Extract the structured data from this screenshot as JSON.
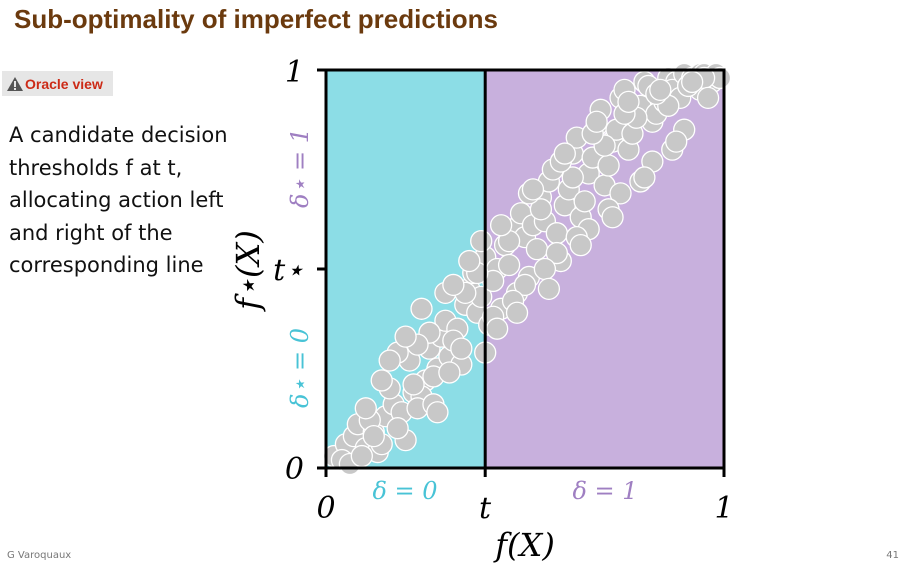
{
  "slide": {
    "title": "Sub-optimality of imperfect predictions",
    "badge": "Oracle view",
    "body": "A candidate decision thresholds f at t, allocating action left and right of the corresponding line",
    "footer_author": "G Varoquaux",
    "page_number": "41"
  },
  "colors": {
    "title": "#6b3a0e",
    "badge_text": "#cc2a16",
    "left_region": "#8cdde6",
    "right_region": "#c8b0dd",
    "cyan_text": "#48c3d6",
    "purple_text": "#9f7fc2",
    "points": "#c8c8c8"
  },
  "icons": {
    "badge_icon": "warning-triangle-icon"
  },
  "chart_data": {
    "type": "scatter",
    "xlabel": "f(X)",
    "ylabel": "f⋆(X)",
    "xlim": [
      0,
      1
    ],
    "ylim": [
      0,
      1
    ],
    "x_ticks": [
      "0",
      "t",
      "1"
    ],
    "y_ticks": [
      "0",
      "t⋆",
      "1"
    ],
    "threshold_x": 0.4,
    "threshold_y": 0.5,
    "region_labels": {
      "left": "δ = 0",
      "right": "δ = 1"
    },
    "side_labels": {
      "lower": "δ⋆ = 0",
      "upper": "δ⋆ = 1"
    },
    "series": [
      {
        "x": [
          0.02,
          0.05,
          0.04,
          0.07,
          0.1,
          0.08,
          0.12,
          0.15,
          0.13,
          0.17,
          0.2,
          0.22,
          0.19,
          0.25,
          0.28,
          0.24,
          0.06,
          0.09,
          0.11,
          0.14,
          0.16,
          0.18,
          0.21,
          0.23,
          0.26,
          0.29,
          0.27,
          0.3,
          0.33,
          0.31,
          0.35,
          0.32,
          0.36,
          0.38,
          0.34,
          0.37,
          0.39,
          0.4,
          0.41,
          0.43,
          0.42,
          0.45,
          0.44,
          0.47,
          0.46,
          0.49,
          0.48,
          0.5,
          0.52,
          0.51,
          0.54,
          0.53,
          0.56,
          0.55,
          0.58,
          0.57,
          0.6,
          0.59,
          0.62,
          0.61,
          0.64,
          0.63,
          0.66,
          0.65,
          0.68,
          0.67,
          0.7,
          0.69,
          0.72,
          0.71,
          0.74,
          0.73,
          0.76,
          0.75,
          0.78,
          0.77,
          0.8,
          0.79,
          0.82,
          0.81,
          0.84,
          0.83,
          0.86,
          0.85,
          0.88,
          0.87,
          0.9,
          0.89,
          0.92,
          0.91,
          0.94,
          0.93,
          0.96,
          0.95,
          0.97,
          0.98,
          0.99,
          0.1,
          0.14,
          0.18,
          0.22,
          0.26,
          0.3,
          0.34,
          0.38,
          0.42,
          0.46,
          0.5,
          0.54,
          0.58,
          0.62,
          0.66,
          0.7,
          0.74,
          0.78,
          0.82,
          0.86,
          0.9,
          0.94,
          0.23,
          0.27,
          0.31,
          0.35,
          0.39,
          0.43,
          0.47,
          0.51,
          0.55,
          0.59,
          0.63,
          0.67,
          0.71,
          0.75,
          0.79,
          0.83,
          0.87,
          0.91,
          0.95,
          0.12,
          0.16,
          0.2,
          0.24,
          0.28,
          0.32,
          0.36,
          0.4,
          0.44,
          0.48,
          0.52,
          0.56,
          0.6,
          0.64,
          0.68,
          0.72,
          0.76,
          0.8,
          0.84,
          0.88,
          0.92,
          0.96
        ],
        "y": [
          0.03,
          0.06,
          0.02,
          0.08,
          0.05,
          0.11,
          0.09,
          0.13,
          0.04,
          0.16,
          0.07,
          0.19,
          0.14,
          0.22,
          0.25,
          0.18,
          0.01,
          0.03,
          0.12,
          0.06,
          0.2,
          0.1,
          0.27,
          0.15,
          0.3,
          0.33,
          0.23,
          0.37,
          0.35,
          0.28,
          0.41,
          0.32,
          0.45,
          0.39,
          0.26,
          0.49,
          0.43,
          0.53,
          0.36,
          0.5,
          0.47,
          0.56,
          0.4,
          0.6,
          0.51,
          0.64,
          0.44,
          0.58,
          0.61,
          0.48,
          0.68,
          0.55,
          0.72,
          0.62,
          0.59,
          0.75,
          0.66,
          0.52,
          0.79,
          0.7,
          0.63,
          0.83,
          0.74,
          0.67,
          0.86,
          0.78,
          0.71,
          0.9,
          0.82,
          0.76,
          0.93,
          0.85,
          0.8,
          0.95,
          0.88,
          0.84,
          0.97,
          0.91,
          0.87,
          0.96,
          0.94,
          0.89,
          0.98,
          0.92,
          0.97,
          0.95,
          0.99,
          0.93,
          0.98,
          0.96,
          0.99,
          0.97,
          0.98,
          0.99,
          0.97,
          0.99,
          0.98,
          0.15,
          0.22,
          0.29,
          0.21,
          0.34,
          0.44,
          0.3,
          0.49,
          0.38,
          0.57,
          0.46,
          0.65,
          0.54,
          0.73,
          0.6,
          0.81,
          0.69,
          0.88,
          0.77,
          0.91,
          0.85,
          0.95,
          0.31,
          0.16,
          0.24,
          0.44,
          0.57,
          0.35,
          0.42,
          0.69,
          0.5,
          0.77,
          0.58,
          0.84,
          0.65,
          0.89,
          0.72,
          0.94,
          0.8,
          0.96,
          0.98,
          0.08,
          0.27,
          0.33,
          0.4,
          0.14,
          0.46,
          0.52,
          0.29,
          0.61,
          0.39,
          0.7,
          0.45,
          0.79,
          0.56,
          0.87,
          0.63,
          0.92,
          0.73,
          0.95,
          0.82,
          0.97,
          0.93
        ]
      }
    ]
  }
}
